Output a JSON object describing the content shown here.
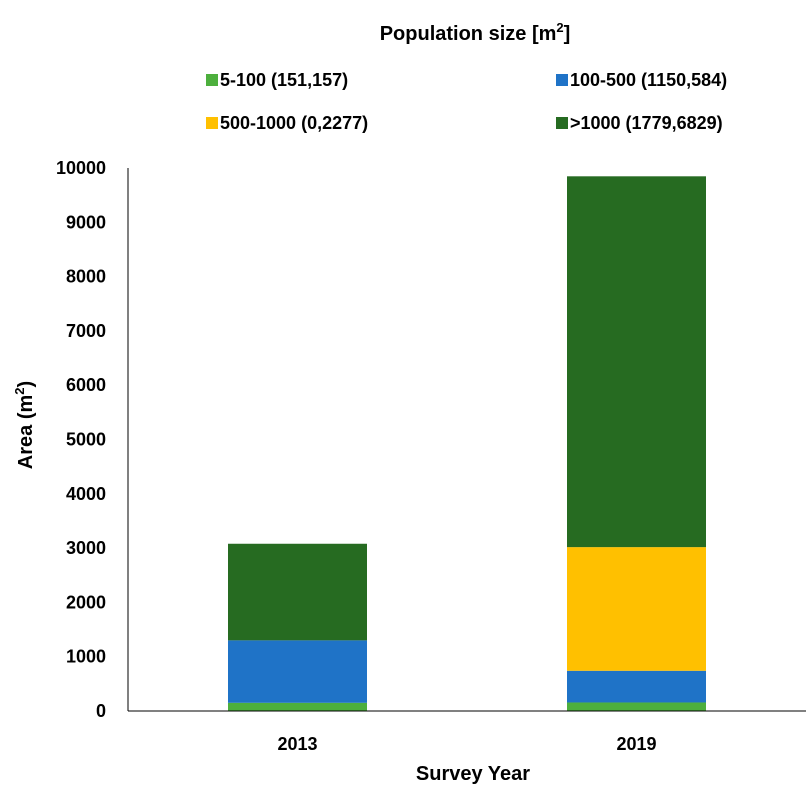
{
  "chart_data": {
    "type": "bar",
    "stacked": true,
    "title": "Population size [m",
    "title_superscript": "2",
    "title_suffix": "]",
    "xlabel": "Survey Year",
    "ylabel": "Area (m",
    "ylabel_superscript": "2",
    "ylabel_suffix": ")",
    "categories": [
      "2013",
      "2019"
    ],
    "ylim": [
      0,
      10000
    ],
    "yticks": [
      "0",
      "1000",
      "2000",
      "3000",
      "4000",
      "5000",
      "6000",
      "7000",
      "8000",
      "9000",
      "10000"
    ],
    "grid": false,
    "legend_position": "top",
    "series": [
      {
        "name": "5-100 (151,157)",
        "color": "#4daf3d",
        "values": [
          151,
          157
        ]
      },
      {
        "name": "100-500 (1150,584)",
        "color": "#1f73c7",
        "values": [
          1150,
          584
        ]
      },
      {
        "name": "500-1000 (0,2277)",
        "color": "#ffc000",
        "values": [
          0,
          2277
        ]
      },
      {
        "name": ">1000 (1779,6829)",
        "color": "#266b21",
        "values": [
          1779,
          6829
        ]
      }
    ]
  }
}
